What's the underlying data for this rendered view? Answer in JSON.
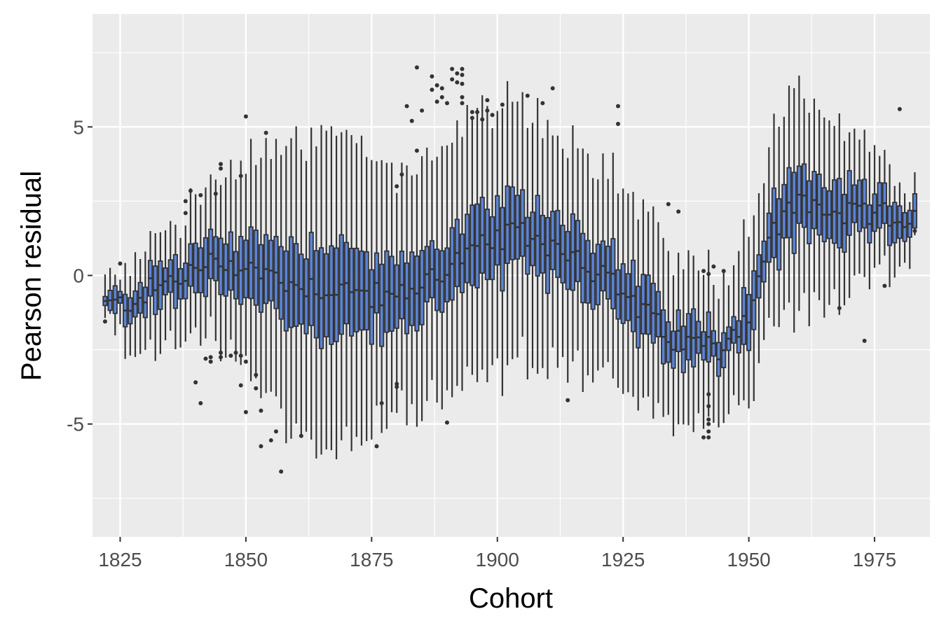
{
  "chart_data": {
    "type": "boxplot",
    "xlabel": "Cohort",
    "ylabel": "Pearson residual",
    "xlim": [
      1819.5,
      1986.0
    ],
    "ylim": [
      -8.8,
      8.8
    ],
    "x_ticks": [
      1825,
      1850,
      1875,
      1900,
      1925,
      1950,
      1975
    ],
    "x_tick_labels": [
      "1825",
      "1850",
      "1875",
      "1900",
      "1925",
      "1950",
      "1975"
    ],
    "y_ticks": [
      -5,
      0,
      5
    ],
    "y_tick_labels": [
      "-5",
      "0",
      "5"
    ],
    "y_minor_ticks": [
      -7.5,
      -2.5,
      2.5,
      7.5
    ],
    "grid": true,
    "colors": {
      "panel_background": "#ebebeb",
      "grid": "#ffffff",
      "box_fill": "#5b84d6",
      "box_outline": "#333333",
      "outlier": "#333333"
    },
    "cohorts": {
      "first": 1822,
      "last": 1983,
      "median_profile_note_free": true,
      "median_knots": [
        [
          1822,
          -1.0
        ],
        [
          1825,
          -1.0
        ],
        [
          1835,
          -0.2
        ],
        [
          1845,
          0.5
        ],
        [
          1850,
          0.3
        ],
        [
          1860,
          -0.3
        ],
        [
          1870,
          -0.5
        ],
        [
          1880,
          -0.8
        ],
        [
          1890,
          0.3
        ],
        [
          1900,
          1.2
        ],
        [
          1905,
          1.4
        ],
        [
          1915,
          0.8
        ],
        [
          1925,
          -0.6
        ],
        [
          1935,
          -2.2
        ],
        [
          1945,
          -2.4
        ],
        [
          1950,
          -1.2
        ],
        [
          1955,
          1.5
        ],
        [
          1960,
          2.5
        ],
        [
          1970,
          2.0
        ],
        [
          1983,
          2.0
        ]
      ],
      "iqr_halfwidth_knots": [
        [
          1822,
          0.2
        ],
        [
          1830,
          0.6
        ],
        [
          1845,
          0.8
        ],
        [
          1860,
          1.4
        ],
        [
          1870,
          1.6
        ],
        [
          1880,
          1.0
        ],
        [
          1895,
          1.2
        ],
        [
          1910,
          1.1
        ],
        [
          1930,
          1.0
        ],
        [
          1945,
          0.6
        ],
        [
          1960,
          1.2
        ],
        [
          1983,
          0.4
        ]
      ],
      "whisker_extent_knots": [
        [
          1822,
          0.3
        ],
        [
          1830,
          1.2
        ],
        [
          1845,
          1.8
        ],
        [
          1860,
          3.6
        ],
        [
          1870,
          3.8
        ],
        [
          1880,
          2.8
        ],
        [
          1890,
          3.2
        ],
        [
          1900,
          3.3
        ],
        [
          1915,
          2.8
        ],
        [
          1930,
          2.2
        ],
        [
          1945,
          1.8
        ],
        [
          1955,
          2.2
        ],
        [
          1960,
          2.6
        ],
        [
          1983,
          0.6
        ]
      ]
    },
    "outliers": [
      [
        1822,
        -1.55
      ],
      [
        1825,
        0.4
      ],
      [
        1838,
        2.1
      ],
      [
        1838,
        2.5
      ],
      [
        1839,
        2.85
      ],
      [
        1840,
        -3.6
      ],
      [
        1841,
        -4.3
      ],
      [
        1841,
        2.7
      ],
      [
        1842,
        -2.8
      ],
      [
        1843,
        -2.75
      ],
      [
        1843,
        -2.9
      ],
      [
        1844,
        2.75
      ],
      [
        1845,
        3.6
      ],
      [
        1845,
        3.75
      ],
      [
        1845,
        -2.6
      ],
      [
        1845,
        -2.75
      ],
      [
        1847,
        -2.7
      ],
      [
        1848,
        -2.6
      ],
      [
        1849,
        -3.7
      ],
      [
        1849,
        -2.7
      ],
      [
        1850,
        -2.9
      ],
      [
        1849,
        3.35
      ],
      [
        1850,
        -4.6
      ],
      [
        1850,
        5.35
      ],
      [
        1852,
        -3.35
      ],
      [
        1852,
        -3.8
      ],
      [
        1853,
        -4.55
      ],
      [
        1853,
        -5.75
      ],
      [
        1854,
        4.8
      ],
      [
        1855,
        -5.55
      ],
      [
        1856,
        -5.25
      ],
      [
        1857,
        -6.6
      ],
      [
        1861,
        -5.4
      ],
      [
        1876,
        -5.75
      ],
      [
        1877,
        -4.3
      ],
      [
        1880,
        -3.65
      ],
      [
        1880,
        -3.75
      ],
      [
        1880,
        3.0
      ],
      [
        1881,
        3.4
      ],
      [
        1882,
        5.7
      ],
      [
        1883,
        5.2
      ],
      [
        1884,
        4.2
      ],
      [
        1884,
        7.0
      ],
      [
        1885,
        5.55
      ],
      [
        1887,
        6.25
      ],
      [
        1887,
        6.7
      ],
      [
        1888,
        5.85
      ],
      [
        1888,
        6.4
      ],
      [
        1889,
        6.0
      ],
      [
        1889,
        6.3
      ],
      [
        1890,
        -4.95
      ],
      [
        1890,
        5.8
      ],
      [
        1891,
        6.6
      ],
      [
        1891,
        6.95
      ],
      [
        1892,
        6.5
      ],
      [
        1892,
        6.8
      ],
      [
        1893,
        5.8
      ],
      [
        1893,
        6.0
      ],
      [
        1893,
        6.45
      ],
      [
        1893,
        6.75
      ],
      [
        1893,
        6.95
      ],
      [
        1895,
        5.3
      ],
      [
        1895,
        5.5
      ],
      [
        1896,
        5.5
      ],
      [
        1897,
        5.25
      ],
      [
        1898,
        5.9
      ],
      [
        1898,
        5.55
      ],
      [
        1899,
        5.4
      ],
      [
        1901,
        5.75
      ],
      [
        1906,
        6.05
      ],
      [
        1909,
        5.8
      ],
      [
        1911,
        6.3
      ],
      [
        1914,
        -4.2
      ],
      [
        1924,
        5.7
      ],
      [
        1924,
        5.1
      ],
      [
        1934,
        2.4
      ],
      [
        1936,
        2.15
      ],
      [
        1941,
        -5.45
      ],
      [
        1941,
        0.15
      ],
      [
        1942,
        -5.25
      ],
      [
        1942,
        -5.45
      ],
      [
        1942,
        -5.0
      ],
      [
        1942,
        -4.85
      ],
      [
        1942,
        -4.4
      ],
      [
        1942,
        -4.0
      ],
      [
        1942,
        0.05
      ],
      [
        1943,
        0.3
      ],
      [
        1945,
        0.15
      ],
      [
        1968,
        -1.1
      ],
      [
        1973,
        -2.2
      ],
      [
        1977,
        -0.35
      ],
      [
        1980,
        5.6
      ],
      [
        1983,
        1.5
      ]
    ]
  }
}
